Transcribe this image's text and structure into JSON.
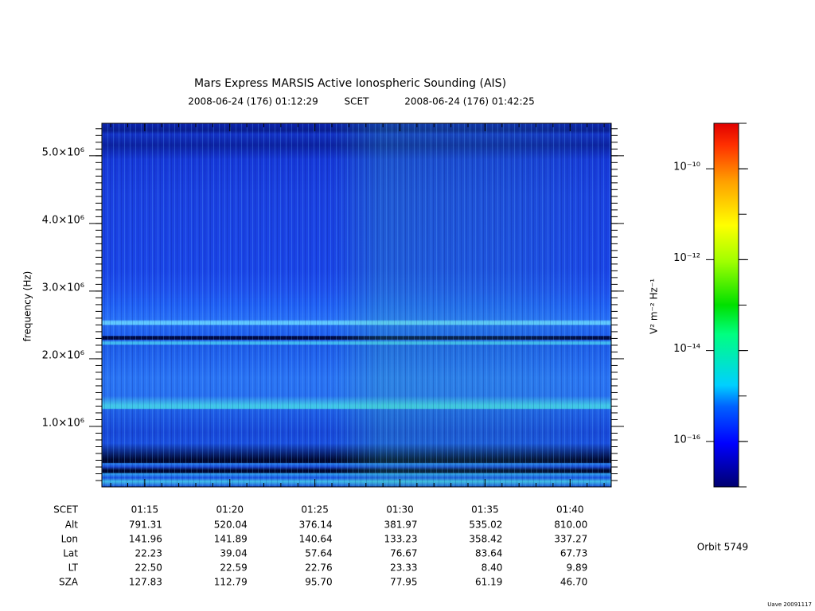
{
  "chart_data": {
    "type": "spectrogram",
    "title": "Mars Express MARSIS Active Ionospheric Sounding (AIS)",
    "start_time": "2008-06-24 (176) 01:12:29",
    "time_system": "SCET",
    "end_time": "2008-06-24 (176) 01:42:25",
    "ylabel": "frequency (Hz)",
    "xlim": [
      12.48,
      42.42
    ],
    "xticks": [
      {
        "value": 15,
        "label": "01:15"
      },
      {
        "value": 20,
        "label": "01:20"
      },
      {
        "value": 25,
        "label": "01:25"
      },
      {
        "value": 30,
        "label": "01:30"
      },
      {
        "value": 35,
        "label": "01:35"
      },
      {
        "value": 40,
        "label": "01:40"
      }
    ],
    "ylim": [
      106000,
      5480000
    ],
    "yticks": [
      {
        "value": 1000000,
        "label": "1.0×10⁶"
      },
      {
        "value": 2000000,
        "label": "2.0×10⁶"
      },
      {
        "value": 3000000,
        "label": "3.0×10⁶"
      },
      {
        "value": 4000000,
        "label": "4.0×10⁶"
      },
      {
        "value": 5000000,
        "label": "5.0×10⁶"
      }
    ],
    "colorbar": {
      "label": "V² m⁻² Hz⁻¹",
      "log": true,
      "zlim": [
        1e-17,
        1e-09
      ],
      "zticks": [
        {
          "value": 1e-16,
          "label": "10⁻¹⁶"
        },
        {
          "value": 1e-14,
          "label": "10⁻¹⁴"
        },
        {
          "value": 1e-12,
          "label": "10⁻¹²"
        },
        {
          "value": 1e-10,
          "label": "10⁻¹⁰"
        }
      ]
    },
    "ephemeris": {
      "time_label": "SCET",
      "rows": [
        {
          "label": "Alt",
          "values": [
            "791.31",
            "520.04",
            "376.14",
            "381.97",
            "535.02",
            "810.00"
          ]
        },
        {
          "label": "Lon",
          "values": [
            "141.96",
            "141.89",
            "140.64",
            "133.23",
            "358.42",
            "337.27"
          ]
        },
        {
          "label": "Lat",
          "values": [
            "22.23",
            "39.04",
            "57.64",
            "76.67",
            "83.64",
            "67.73"
          ]
        },
        {
          "label": "LT",
          "values": [
            "22.50",
            "22.59",
            "22.76",
            "23.33",
            "8.40",
            "9.89"
          ]
        },
        {
          "label": "SZA",
          "values": [
            "127.83",
            "112.79",
            "95.70",
            "77.95",
            "61.19",
            "46.70"
          ]
        }
      ]
    },
    "orbit": "Orbit 5749",
    "footer": "Uave 20091117"
  }
}
